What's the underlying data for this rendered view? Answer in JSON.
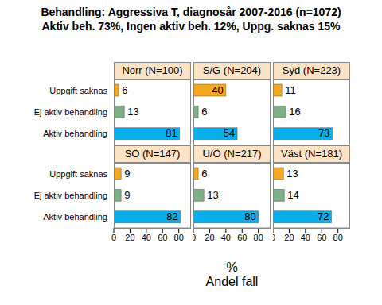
{
  "chart_data": {
    "type": "bar",
    "orientation": "horizontal",
    "title": "Behandling: Aggressiva T, diagnosår 2007-2016 (n=1072)",
    "subtitle": "Aktiv beh. 73%, Ingen aktiv beh. 12%, Uppg. saknas 15%",
    "xlabel": "%",
    "xlabel_sub": "Andel fall",
    "categories": [
      "Uppgift saknas",
      "Ej aktiv behandling",
      "Aktiv behandling"
    ],
    "colors": [
      "#f7a823",
      "#7faf86",
      "#0aaeea"
    ],
    "xlim": [
      0,
      95
    ],
    "xticks": [
      0,
      20,
      40,
      60,
      80
    ],
    "data_labels": true,
    "panels": [
      {
        "title": "Norr (N=100)",
        "values": [
          6,
          13,
          81
        ]
      },
      {
        "title": "S/G (N=204)",
        "values": [
          40,
          6,
          54
        ]
      },
      {
        "title": "Syd (N=223)",
        "values": [
          11,
          16,
          73
        ]
      },
      {
        "title": "SÖ (N=147)",
        "values": [
          9,
          9,
          82
        ]
      },
      {
        "title": "U/Ö (N=217)",
        "values": [
          6,
          13,
          80
        ]
      },
      {
        "title": "Väst (N=181)",
        "values": [
          13,
          14,
          72
        ]
      }
    ]
  }
}
